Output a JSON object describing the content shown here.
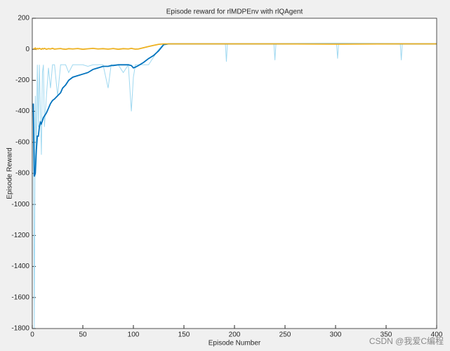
{
  "chart_data": {
    "type": "line",
    "title": "Episode reward for rlMDPEnv with rlQAgent",
    "x_label": "Episode Number",
    "y_label": "Episode Reward",
    "watermark": "CSDN @我爱C编程",
    "x": [
      1,
      2,
      3,
      4,
      5,
      6,
      7,
      8,
      9,
      10,
      11,
      12,
      14,
      16,
      18,
      20,
      22,
      25,
      28,
      30,
      33,
      36,
      40,
      45,
      50,
      55,
      60,
      65,
      70,
      75,
      78,
      80,
      85,
      90,
      95,
      98,
      100,
      102,
      105,
      110,
      115,
      120,
      125,
      130,
      135,
      150,
      191,
      192,
      193,
      239,
      240,
      241,
      301,
      302,
      303,
      364,
      365,
      366,
      400
    ],
    "series": [
      {
        "color": "#9fd8f0",
        "values": [
          -400,
          -1800,
          -300,
          -650,
          -100,
          -500,
          -100,
          -400,
          -680,
          -150,
          -100,
          -500,
          -300,
          -120,
          -250,
          -100,
          -100,
          -300,
          -100,
          -100,
          -100,
          -150,
          -100,
          -100,
          -100,
          -110,
          -100,
          -100,
          -100,
          -250,
          -100,
          -100,
          -100,
          -150,
          -100,
          -400,
          -180,
          -100,
          -100,
          -100,
          -100,
          -50,
          0,
          35,
          35,
          35,
          35,
          -80,
          35,
          35,
          -70,
          35,
          35,
          -60,
          35,
          35,
          -70,
          35,
          35
        ]
      },
      {
        "color": "#0072bd",
        "values": [
          -350,
          -820,
          -800,
          -650,
          -560,
          -560,
          -500,
          -470,
          -480,
          -460,
          -440,
          -430,
          -410,
          -380,
          -350,
          -330,
          -320,
          -300,
          -280,
          -250,
          -230,
          -200,
          -180,
          -170,
          -160,
          -150,
          -130,
          -120,
          -110,
          -110,
          -105,
          -105,
          -100,
          -100,
          -100,
          -105,
          -120,
          -115,
          -105,
          -85,
          -60,
          -40,
          -10,
          30,
          35,
          35,
          35,
          35,
          35,
          35,
          35,
          35,
          35,
          35,
          35,
          35,
          35,
          35,
          35
        ]
      },
      {
        "color": "#edb120",
        "values": [
          5,
          3,
          8,
          0,
          5,
          2,
          6,
          3,
          0,
          5,
          2,
          6,
          0,
          4,
          2,
          6,
          1,
          3,
          5,
          2,
          0,
          4,
          2,
          5,
          0,
          3,
          6,
          2,
          4,
          1,
          3,
          5,
          0,
          4,
          2,
          6,
          3,
          1,
          2,
          10,
          18,
          25,
          32,
          35,
          35,
          35,
          35,
          35,
          35,
          35,
          35,
          35,
          33,
          33,
          33,
          35,
          35,
          35,
          35
        ]
      }
    ],
    "xlim": [
      0,
      400
    ],
    "xticks": [
      0,
      50,
      100,
      150,
      200,
      250,
      300,
      350,
      400
    ],
    "ylim": [
      -1800,
      200
    ],
    "yticks": [
      -1800,
      -1600,
      -1400,
      -1200,
      -1000,
      -800,
      -600,
      -400,
      -200,
      0,
      200
    ]
  }
}
